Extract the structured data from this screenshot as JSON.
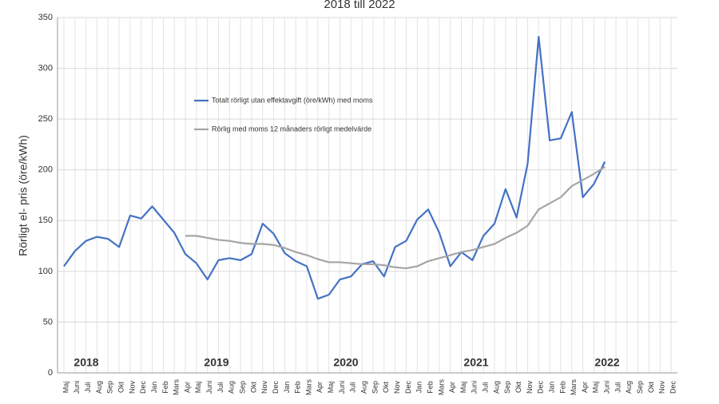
{
  "chart_data": {
    "type": "line",
    "title": "2018 till 2022",
    "y_label": "Rörligt el- pris  (öre/kWh)",
    "categories": [
      "Maj",
      "Juni",
      "Juli",
      "Aug",
      "Sep",
      "Okt",
      "Nov",
      "Dec",
      "Jan",
      "Feb",
      "Mars",
      "Apr",
      "Maj",
      "Juni",
      "Juli",
      "Aug",
      "Sep",
      "Okt",
      "Nov",
      "Dec",
      "Jan",
      "Feb",
      "Mars",
      "Apr",
      "Maj",
      "Juni",
      "Juli",
      "Aug",
      "Sep",
      "Okt",
      "Nov",
      "Dec",
      "Jan",
      "Feb",
      "Mars",
      "Apr",
      "Maj",
      "Juni",
      "Juli",
      "Aug",
      "Sep",
      "Okt",
      "Nov",
      "Dec",
      "Jan",
      "Feb",
      "Mars",
      "Apr",
      "Maj",
      "Juni",
      "Juli",
      "Aug",
      "Sep",
      "Okt",
      "Nov",
      "Dec"
    ],
    "series": [
      {
        "name": "Totalt rörligt utan effektavgift (öre/kWh) med moms",
        "color": "#4472c4",
        "values": [
          105,
          120,
          130,
          134,
          132,
          124,
          155,
          152,
          164,
          151,
          138,
          117,
          108,
          92,
          111,
          113,
          111,
          117,
          147,
          137,
          118,
          110,
          105,
          73,
          77,
          92,
          95,
          107,
          110,
          95,
          124,
          130,
          151,
          161,
          138,
          105,
          119,
          111,
          135,
          147,
          181,
          153,
          206,
          331,
          229,
          231,
          257,
          173,
          186,
          208,
          null,
          null,
          null,
          null,
          null,
          null
        ]
      },
      {
        "name": "Rörlig med moms 12 månaders rörligt medelvärde",
        "color": "#a5a5a5",
        "values": [
          null,
          null,
          null,
          null,
          null,
          null,
          null,
          null,
          null,
          null,
          null,
          135,
          135,
          133,
          131,
          130,
          128,
          127,
          127,
          126,
          123,
          119,
          116,
          112,
          109,
          109,
          108,
          107,
          107,
          106,
          104,
          103,
          105,
          110,
          113,
          116,
          119,
          121,
          124,
          127,
          133,
          138,
          145,
          161,
          167,
          173,
          184,
          190,
          196,
          203,
          null,
          null,
          null,
          null,
          null,
          null
        ]
      }
    ],
    "annotations": [
      "2018",
      "2019",
      "2020",
      "2021",
      "2022"
    ],
    "ylim": [
      0,
      350
    ],
    "yticks": [
      0,
      50,
      100,
      150,
      200,
      250,
      300,
      350
    ],
    "grid": true
  }
}
